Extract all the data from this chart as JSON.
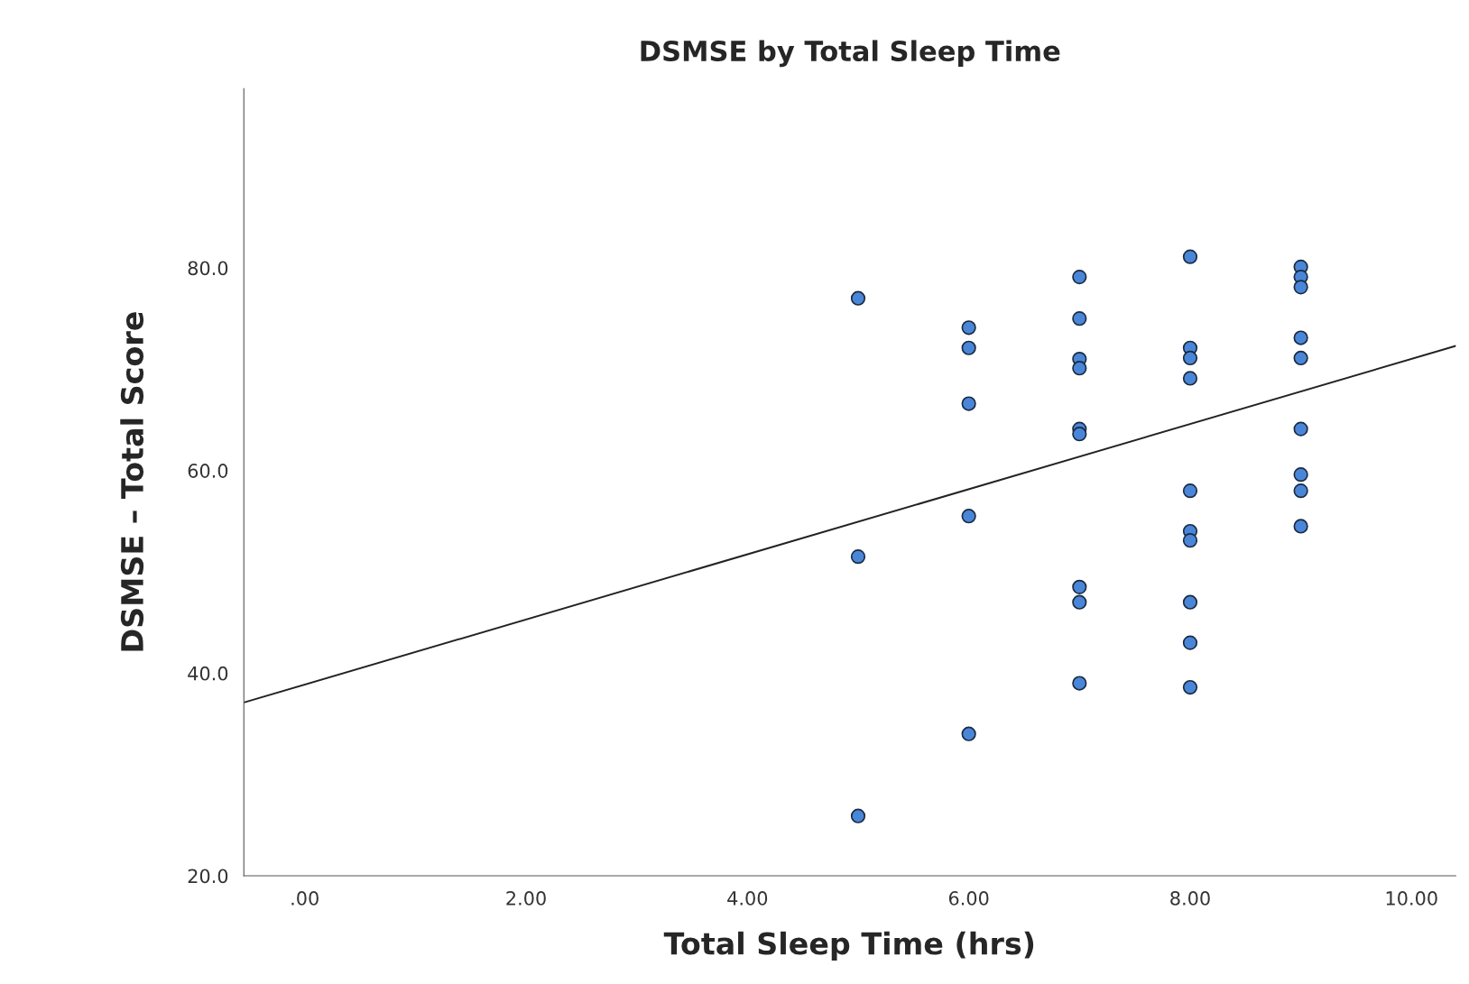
{
  "chart_data": {
    "type": "scatter",
    "title": "DSMSE by Total Sleep Time",
    "xlabel": "Total Sleep Time (hrs)",
    "ylabel": "DSMSE – Total Score",
    "xlim": [
      -0.55,
      10.4
    ],
    "ylim": [
      20,
      97.7
    ],
    "xticks": [
      {
        "value": 0,
        "label": ".00"
      },
      {
        "value": 2,
        "label": "2.00"
      },
      {
        "value": 4,
        "label": "4.00"
      },
      {
        "value": 6,
        "label": "6.00"
      },
      {
        "value": 8,
        "label": "8.00"
      },
      {
        "value": 10,
        "label": "10.00"
      }
    ],
    "yticks": [
      {
        "value": 20,
        "label": "20.0"
      },
      {
        "value": 40,
        "label": "40.0"
      },
      {
        "value": 60,
        "label": "60.0"
      },
      {
        "value": 80,
        "label": "80.0"
      }
    ],
    "grid": false,
    "series": [
      {
        "marker": "circle",
        "color": "#4a86d8",
        "x": [
          5,
          5,
          5,
          6,
          6,
          6,
          6,
          6,
          7,
          7,
          7,
          7,
          7,
          7,
          7,
          7,
          7,
          8,
          8,
          8,
          8,
          8,
          8,
          8,
          8,
          8,
          8,
          9,
          9,
          9,
          9,
          9,
          9,
          9,
          9,
          9
        ],
        "values": [
          77.0,
          51.5,
          25.9,
          74.1,
          72.1,
          66.6,
          55.5,
          34.0,
          79.1,
          75.0,
          71.0,
          70.1,
          64.1,
          63.6,
          48.5,
          47.0,
          39.0,
          81.1,
          72.1,
          71.1,
          69.1,
          58.0,
          54.0,
          53.1,
          47.0,
          43.0,
          38.6,
          80.1,
          79.1,
          78.1,
          73.1,
          71.1,
          64.1,
          59.6,
          58.0,
          54.5
        ]
      },
      {
        "type": "line",
        "color": "#222222",
        "x": [
          -0.55,
          10.4
        ],
        "values": [
          37.1,
          72.3
        ]
      }
    ]
  }
}
